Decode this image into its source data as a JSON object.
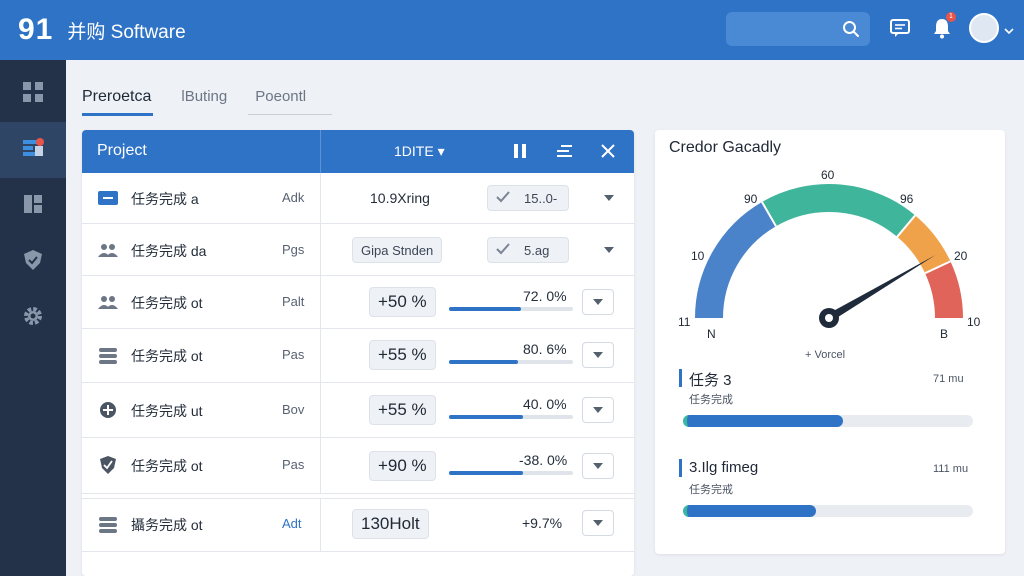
{
  "header": {
    "logo": "91",
    "title": "并购 Software",
    "notification_count": "1"
  },
  "sidebar": {
    "items": [
      {
        "icon": "grid-icon"
      },
      {
        "icon": "dashboard-icon",
        "active": true
      },
      {
        "icon": "reports-icon"
      },
      {
        "icon": "shield-icon"
      },
      {
        "icon": "gear-icon"
      }
    ]
  },
  "tabs": [
    {
      "label": "Preroetca",
      "active": true
    },
    {
      "label": "lButing"
    },
    {
      "label": "Poeontl"
    }
  ],
  "table": {
    "header": {
      "project": "Project",
      "filter": "1DITE"
    },
    "rows": [
      {
        "icon": "minus-card-icon",
        "name": "任务完成 a",
        "code": "Adk",
        "value_text": "10.9Xring",
        "chip": "15..0-",
        "chip_check": true
      },
      {
        "icon": "users-icon",
        "name": "任务完成 da",
        "code": "Pgs",
        "value_chip": "Gipa Stnden",
        "chip": "5.ag",
        "chip_check": true
      },
      {
        "icon": "users-icon",
        "name": "任务完成 ot",
        "code": "Palt",
        "change": "+50 %",
        "pct": "72. 0%",
        "progress": 0.58
      },
      {
        "icon": "database-icon",
        "name": "任务完成 ot",
        "code": "Pas",
        "change": "+55 %",
        "pct": "80. 6%",
        "progress": 0.56
      },
      {
        "icon": "plus-circle-icon",
        "name": "任务完成 ut",
        "code": "Bov",
        "change": "+55 %",
        "pct": "40. 0%",
        "progress": 0.6
      },
      {
        "icon": "shield-icon",
        "name": "任务完成 ot",
        "code": "Pas",
        "change": "+90 %",
        "pct": "-38. 0%",
        "progress": 0.6
      },
      {
        "icon": "database-icon",
        "name": "攝务完成 ot",
        "code": "Adt",
        "change": "130Holt",
        "pct": "+9.7%"
      }
    ]
  },
  "panel": {
    "title": "Credor Gacadly",
    "gauge": {
      "labels": {
        "top": "60",
        "left_upper": "90",
        "right_upper": "96",
        "left": "10",
        "right": "20",
        "bottom_left": "11",
        "bottom_right": "10",
        "inner_left": "N",
        "inner_right": "B"
      },
      "caption": "+ Vorcel",
      "needle_value": 0.83,
      "colors": {
        "blue": "#4a83c9",
        "teal": "#3fb69b",
        "orange": "#f0a24a",
        "red": "#e0645a"
      }
    },
    "tasks": [
      {
        "title": "任务 3",
        "subtitle": "任务完成",
        "right": "71 mu",
        "progress": 0.55
      },
      {
        "title": "3.Ilg fimeg",
        "subtitle": "任务完戒",
        "right": "111 mu",
        "progress": 0.46
      }
    ]
  }
}
